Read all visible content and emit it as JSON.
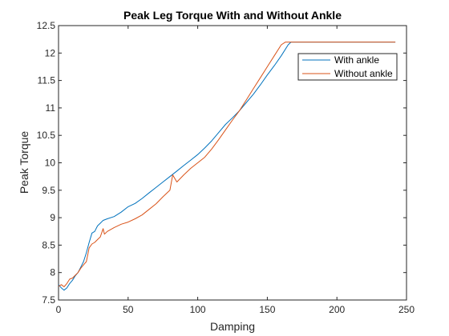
{
  "chart_data": {
    "type": "line",
    "title": "Peak Leg Torque With and Without Ankle",
    "xlabel": "Damping",
    "ylabel": "Peak Torque",
    "xlim": [
      0,
      250
    ],
    "ylim": [
      7.5,
      12.5
    ],
    "xticks": [
      "0",
      "50",
      "100",
      "150",
      "200",
      "250"
    ],
    "yticks": [
      "7.5",
      "8",
      "8.5",
      "9",
      "9.5",
      "10",
      "10.5",
      "11",
      "11.5",
      "12",
      "12.5"
    ],
    "grid": false,
    "legend_position": "top-right",
    "series": [
      {
        "name": "With ankle",
        "color": "#0072BD",
        "x": [
          0,
          2,
          4,
          6,
          8,
          10,
          12,
          14,
          16,
          18,
          20,
          22,
          24,
          26,
          28,
          30,
          32,
          35,
          40,
          45,
          50,
          55,
          60,
          65,
          70,
          75,
          80,
          85,
          90,
          95,
          100,
          105,
          110,
          115,
          120,
          125,
          130,
          135,
          140,
          145,
          150,
          155,
          160,
          165,
          167,
          170,
          180,
          200,
          220,
          242
        ],
        "y": [
          7.78,
          7.72,
          7.68,
          7.72,
          7.8,
          7.86,
          7.94,
          8.0,
          8.1,
          8.2,
          8.36,
          8.55,
          8.72,
          8.75,
          8.85,
          8.9,
          8.95,
          8.98,
          9.02,
          9.1,
          9.2,
          9.26,
          9.35,
          9.45,
          9.55,
          9.65,
          9.75,
          9.85,
          9.95,
          10.05,
          10.15,
          10.27,
          10.4,
          10.55,
          10.7,
          10.82,
          10.95,
          11.1,
          11.25,
          11.42,
          11.6,
          11.77,
          11.95,
          12.15,
          12.2,
          12.2,
          12.2,
          12.2,
          12.2,
          12.2
        ]
      },
      {
        "name": "Without ankle",
        "color": "#D95319",
        "x": [
          0,
          2,
          4,
          6,
          8,
          10,
          12,
          14,
          16,
          18,
          20,
          22,
          24,
          26,
          28,
          30,
          32,
          33,
          35,
          40,
          45,
          50,
          55,
          60,
          65,
          70,
          75,
          80,
          82,
          85,
          90,
          95,
          100,
          105,
          110,
          115,
          120,
          125,
          130,
          135,
          140,
          145,
          150,
          155,
          160,
          163,
          170,
          180,
          200,
          220,
          242
        ],
        "y": [
          7.75,
          7.78,
          7.74,
          7.8,
          7.88,
          7.9,
          7.95,
          8.0,
          8.08,
          8.14,
          8.2,
          8.45,
          8.52,
          8.55,
          8.6,
          8.65,
          8.8,
          8.7,
          8.75,
          8.82,
          8.88,
          8.92,
          8.98,
          9.05,
          9.15,
          9.25,
          9.38,
          9.5,
          9.78,
          9.65,
          9.78,
          9.9,
          10.0,
          10.1,
          10.25,
          10.42,
          10.6,
          10.78,
          10.95,
          11.15,
          11.35,
          11.55,
          11.75,
          11.95,
          12.15,
          12.2,
          12.2,
          12.2,
          12.2,
          12.2,
          12.2
        ]
      }
    ]
  }
}
